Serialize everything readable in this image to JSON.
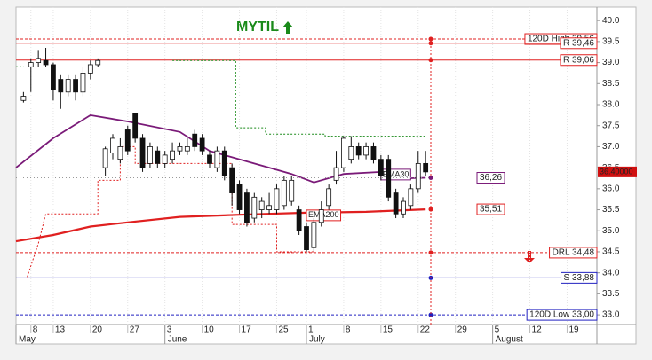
{
  "chart_data": {
    "type": "candlestick",
    "title": "MYTIL",
    "xlim": [
      -1,
      77
    ],
    "ylim": [
      32.77,
      40.32
    ],
    "yticks": [
      {
        "value": 33.0,
        "label": "33.0"
      },
      {
        "value": 33.5,
        "label": "33.5"
      },
      {
        "value": 34.0,
        "label": "34.0"
      },
      {
        "value": 34.5,
        "label": "34.5"
      },
      {
        "value": 35.0,
        "label": "35.0"
      },
      {
        "value": 35.5,
        "label": "35.5"
      },
      {
        "value": 36.0,
        "label": "36.0"
      },
      {
        "value": 36.5,
        "label": "36.5"
      },
      {
        "value": 37.0,
        "label": "37.0"
      },
      {
        "value": 37.5,
        "label": "37.5"
      },
      {
        "value": 38.0,
        "label": "38.0"
      },
      {
        "value": 38.5,
        "label": "38.5"
      },
      {
        "value": 39.0,
        "label": "39.0"
      },
      {
        "value": 39.5,
        "label": "39.5"
      },
      {
        "value": 40.0,
        "label": "40.0"
      }
    ],
    "xticks": [
      {
        "value": 1,
        "label": "8"
      },
      {
        "value": 4,
        "label": "13"
      },
      {
        "value": 9,
        "label": "20"
      },
      {
        "value": 14,
        "label": "27"
      },
      {
        "value": 19,
        "label": "3"
      },
      {
        "value": 24,
        "label": "10"
      },
      {
        "value": 29,
        "label": "17"
      },
      {
        "value": 34,
        "label": "25"
      },
      {
        "value": 38,
        "label": "1"
      },
      {
        "value": 43,
        "label": "8"
      },
      {
        "value": 48,
        "label": "15"
      },
      {
        "value": 53,
        "label": "22"
      },
      {
        "value": 58,
        "label": "29"
      },
      {
        "value": 63,
        "label": "5"
      },
      {
        "value": 68,
        "label": "12"
      },
      {
        "value": 73,
        "label": "19"
      }
    ],
    "months": [
      {
        "value": -1,
        "label": "May"
      },
      {
        "value": 19,
        "label": "June"
      },
      {
        "value": 38,
        "label": "July"
      },
      {
        "value": 63,
        "label": "August"
      }
    ],
    "candles": {
      "x": [
        0,
        1,
        2,
        3,
        4,
        5,
        6,
        7,
        8,
        9,
        10,
        11,
        12,
        13,
        14,
        15,
        16,
        17,
        18,
        19,
        20,
        21,
        22,
        23,
        24,
        25,
        26,
        27,
        28,
        29,
        30,
        31,
        32,
        33,
        34,
        35,
        36,
        37,
        38,
        39,
        40,
        41,
        42,
        43,
        44,
        45,
        46,
        47,
        48,
        49,
        50,
        51,
        52,
        53,
        54
      ],
      "open": [
        38.1,
        38.9,
        39.0,
        39.05,
        38.95,
        38.6,
        38.3,
        38.6,
        38.3,
        38.75,
        38.95,
        36.5,
        36.85,
        36.7,
        37.4,
        37.8,
        37.2,
        36.6,
        36.9,
        36.6,
        36.7,
        36.9,
        36.9,
        37.3,
        37.2,
        36.8,
        36.5,
        36.9,
        36.5,
        36.1,
        35.9,
        35.3,
        35.5,
        35.5,
        35.5,
        35.6,
        35.7,
        35.5,
        35.1,
        34.6,
        35.2,
        35.6,
        36.2,
        36.5,
        36.7,
        37.0,
        36.8,
        37.0,
        36.7,
        36.7,
        35.9,
        35.4,
        35.6,
        36.0,
        36.6
      ],
      "high": [
        38.3,
        39.1,
        39.3,
        39.35,
        39.0,
        38.7,
        38.7,
        38.7,
        38.9,
        39.05,
        39.1,
        37.0,
        37.3,
        37.2,
        37.5,
        37.8,
        37.3,
        37.1,
        37.0,
        36.9,
        37.1,
        37.1,
        37.2,
        37.4,
        37.3,
        36.9,
        37.0,
        37.0,
        36.6,
        36.2,
        36.0,
        35.9,
        35.8,
        35.9,
        36.1,
        36.3,
        36.3,
        35.6,
        35.2,
        35.3,
        35.7,
        36.1,
        36.9,
        37.25,
        37.25,
        37.1,
        37.1,
        37.1,
        36.8,
        36.8,
        36.0,
        35.8,
        36.1,
        36.9,
        36.9
      ],
      "low": [
        38.05,
        38.3,
        38.9,
        38.9,
        38.1,
        37.9,
        38.2,
        38.1,
        38.2,
        38.6,
        38.9,
        36.3,
        36.7,
        36.6,
        36.8,
        37.1,
        36.4,
        36.5,
        36.5,
        36.5,
        36.6,
        36.8,
        36.8,
        36.9,
        36.8,
        36.5,
        36.4,
        36.2,
        35.6,
        35.4,
        35.1,
        35.2,
        35.3,
        35.4,
        35.4,
        35.5,
        35.6,
        34.9,
        34.5,
        34.5,
        35.1,
        35.5,
        36.1,
        36.4,
        36.6,
        36.7,
        36.7,
        36.6,
        36.2,
        35.7,
        35.3,
        35.3,
        35.5,
        35.9,
        36.3
      ],
      "close": [
        38.2,
        39.0,
        39.1,
        38.95,
        38.35,
        38.3,
        38.6,
        38.3,
        38.75,
        38.95,
        39.05,
        36.95,
        37.2,
        37.0,
        36.9,
        37.2,
        36.5,
        37.0,
        36.6,
        36.8,
        36.9,
        37.0,
        37.0,
        37.0,
        36.9,
        36.6,
        36.9,
        36.3,
        35.9,
        35.5,
        35.2,
        35.8,
        35.7,
        35.6,
        36.0,
        36.2,
        36.2,
        35.0,
        34.55,
        35.2,
        35.5,
        36.0,
        36.5,
        37.2,
        37.0,
        36.8,
        37.0,
        36.7,
        36.3,
        35.8,
        35.4,
        35.7,
        36.0,
        36.6,
        36.4
      ]
    },
    "lines": [
      {
        "name": "EMA30",
        "color": "#7a1a78",
        "x": [
          -1,
          4,
          9,
          14,
          21,
          25,
          33,
          36,
          39,
          43,
          48,
          52,
          54
        ],
        "values": [
          36.5,
          37.2,
          37.75,
          37.6,
          37.35,
          36.9,
          36.5,
          36.35,
          36.15,
          36.35,
          36.4,
          36.25,
          36.26
        ],
        "last_value": 36.26,
        "last_label": "36,26"
      },
      {
        "name": "EMA200",
        "color": "#e02020",
        "x": [
          -1,
          4,
          9,
          14,
          21,
          29,
          38,
          46,
          54
        ],
        "values": [
          34.75,
          34.9,
          35.1,
          35.2,
          35.33,
          35.38,
          35.43,
          35.45,
          35.51
        ],
        "last_value": 35.51,
        "last_label": "35,51"
      }
    ],
    "stops": [
      {
        "color": "#1a8a1a",
        "x": [
          -1,
          0,
          10,
          20,
          28.5,
          28.5,
          32.5,
          32.5,
          40.5,
          40.5,
          54
        ],
        "values": [
          38.9,
          38.9,
          null,
          39.05,
          39.05,
          37.45,
          37.45,
          37.3,
          37.3,
          37.25,
          37.25
        ]
      },
      {
        "color": "#e02020",
        "x": [
          0.5,
          2,
          3,
          10,
          10,
          13,
          13,
          15,
          15,
          28,
          28,
          34,
          34,
          39
        ],
        "values": [
          33.9,
          34.7,
          35.4,
          35.4,
          36.2,
          36.2,
          37.0,
          37.0,
          36.6,
          36.6,
          35.15,
          35.15,
          34.5,
          34.5
        ]
      }
    ],
    "levels": [
      {
        "label": "120D High 39,56",
        "value": 39.56,
        "color": "#e02020",
        "style": "dashed"
      },
      {
        "label": "R 39,46",
        "value": 39.46,
        "color": "#e02020",
        "style": "solid"
      },
      {
        "label": "R 39,06",
        "value": 39.06,
        "color": "#e02020",
        "style": "solid"
      },
      {
        "label": "DRL 34,48",
        "value": 34.48,
        "color": "#e02020",
        "style": "dashed"
      },
      {
        "label": "S 33,88",
        "value": 33.88,
        "color": "#2020c0",
        "style": "solid"
      },
      {
        "label": "120D Low 33,00",
        "value": 33.0,
        "color": "#2020c0",
        "style": "dashed"
      }
    ],
    "last_price": {
      "value": 36.4,
      "label": "36.40000"
    }
  }
}
